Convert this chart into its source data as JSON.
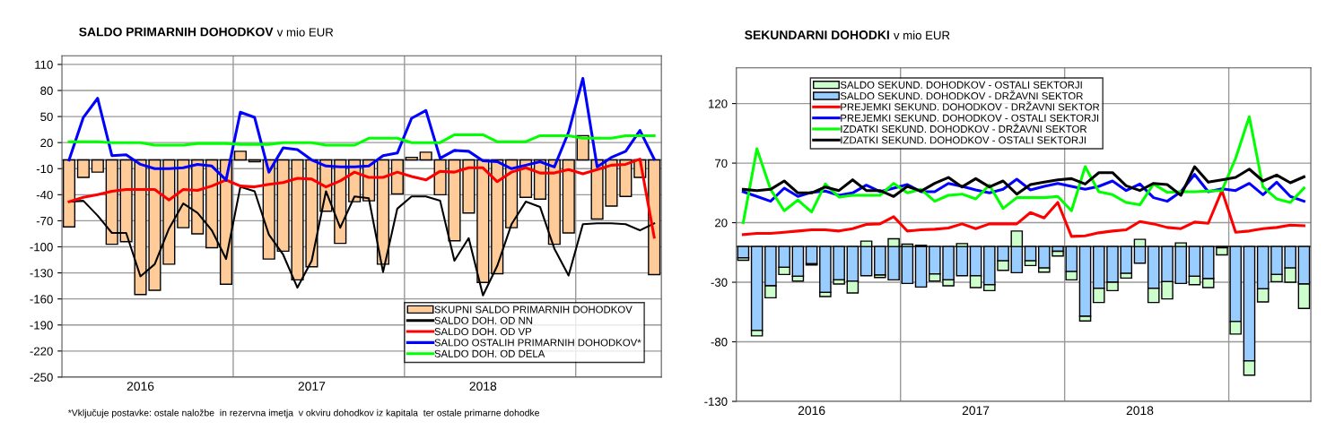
{
  "chart_data": [
    {
      "type": "bar",
      "title": "SALDO PRIMARNIH DOHODKOV",
      "subtitle": "v mio EUR",
      "categories": [
        null,
        null,
        null,
        null,
        null,
        "2016",
        null,
        null,
        null,
        null,
        null,
        null,
        null,
        null,
        null,
        null,
        null,
        "2017",
        null,
        null,
        null,
        null,
        null,
        null,
        null,
        null,
        null,
        null,
        null,
        "2018",
        null,
        null,
        null,
        null,
        null,
        null,
        null,
        null,
        null,
        null,
        null,
        null
      ],
      "series": [
        {
          "name": "SKUPNI SALDO PRIMARNIH DOHODKOV",
          "color": "#ffcc99",
          "values": [
            -77,
            -20,
            -14,
            -97,
            -94,
            -155,
            -150,
            -120,
            -78,
            -85,
            -101,
            -143,
            10,
            -2,
            -114,
            -105,
            -138,
            -123,
            -59,
            -96,
            -48,
            -47,
            -120,
            -39,
            3,
            9,
            -40,
            -93,
            -61,
            -141,
            -131,
            -78,
            -43,
            -45,
            -97,
            -84,
            28,
            -68,
            -53,
            -42,
            -20,
            -132
          ]
        },
        {
          "name": "SALDO DOH. OD NN",
          "type": "line",
          "color": "#000000",
          "values": [
            -48,
            -47,
            -64,
            -84,
            -84,
            -134,
            -120,
            -79,
            -50,
            -61,
            -81,
            -114,
            -31,
            -36,
            -86,
            -109,
            -147,
            -116,
            -36,
            -78,
            -42,
            -44,
            -129,
            -56,
            -42,
            -42,
            -47,
            -116,
            -90,
            -156,
            -122,
            -74,
            -48,
            -54,
            -102,
            -133,
            -74,
            -73,
            -73,
            -74,
            -81,
            -73
          ]
        },
        {
          "name": "SALDO DOH. OD VP",
          "type": "line",
          "color": "#ff0000",
          "values": [
            -48,
            -43,
            -40,
            -36,
            -34,
            -34,
            -34,
            -46,
            -34,
            -35,
            -30,
            -23,
            -30,
            -31,
            -28,
            -26,
            -21,
            -22,
            -31,
            -24,
            -14,
            -20,
            -20,
            -14,
            -19,
            -23,
            -13,
            -14,
            -9,
            -9,
            -25,
            -14,
            -9,
            -15,
            -15,
            -11,
            -16,
            -11,
            -6,
            -5,
            1,
            -89
          ]
        },
        {
          "name": "SALDO OSTALIH PRIMARNIH DOHODKOV*",
          "type": "line",
          "color": "#0000ff",
          "values": [
            0,
            49,
            71,
            5,
            6,
            -5,
            -10,
            -10,
            -9,
            -5,
            -7,
            -23,
            55,
            49,
            -14,
            14,
            12,
            0,
            -7,
            -8,
            -8,
            -7,
            5,
            8,
            48,
            57,
            2,
            11,
            10,
            -1,
            -2,
            -10,
            -6,
            -2,
            -8,
            32,
            94,
            -8,
            3,
            10,
            34,
            1
          ]
        },
        {
          "name": "SALDO DOH. OD DELA",
          "type": "line",
          "color": "#00ff00",
          "values": [
            21,
            21,
            21,
            20,
            20,
            20,
            17,
            17,
            17,
            19,
            19,
            19,
            18,
            18,
            18,
            20,
            20,
            20,
            17,
            17,
            17,
            25,
            25,
            25,
            20,
            20,
            20,
            29,
            29,
            29,
            21,
            21,
            21,
            28,
            28,
            28,
            25,
            25,
            25,
            28,
            28,
            28
          ]
        }
      ],
      "ylim": [
        -250,
        120
      ],
      "yticks": [
        110,
        80,
        50,
        20,
        -10,
        -40,
        -70,
        -100,
        -130,
        -160,
        -190,
        -220,
        -250
      ],
      "grid": true,
      "legend": "bottom right",
      "annotations": [
        "*Vključuje postavke: ostale naložbe  in rezervna imetja  v okviru dohodkov iz kapitala  ter ostale primarne dohodke"
      ]
    },
    {
      "type": "bar",
      "title": "SEKUNDARNI DOHODKI",
      "subtitle": "v mio EUR",
      "stacked": true,
      "categories": [
        null,
        null,
        null,
        null,
        null,
        "2016",
        null,
        null,
        null,
        null,
        null,
        null,
        null,
        null,
        null,
        null,
        null,
        "2017",
        null,
        null,
        null,
        null,
        null,
        null,
        null,
        null,
        null,
        null,
        null,
        "2018",
        null,
        null,
        null,
        null,
        null,
        null,
        null,
        null,
        null,
        null,
        null,
        null
      ],
      "series": [
        {
          "name": "SALDO SEKUND. DOHODKOV - DRŽAVNI SEKTOR",
          "color": "#99ccff",
          "values": [
            -9.5,
            -70.5,
            -33,
            -17.5,
            -25,
            -14.5,
            -38.5,
            -28,
            -29,
            -24.5,
            -24,
            -28,
            -31,
            -34,
            -23,
            -28,
            -24.5,
            -24.5,
            -32,
            -12,
            -22,
            -12,
            -18,
            -4,
            -21,
            -58.5,
            -35,
            -30,
            -22.5,
            -14,
            -35,
            -29.5,
            -31,
            -25,
            -27,
            -1,
            -63,
            -96,
            -35.5,
            -23.5,
            -18,
            -31.5
          ]
        },
        {
          "name": "SALDO SEKUND. DOHODKOV - OSTALI SEKTORJI",
          "color": "#ccffcc",
          "values": [
            -2,
            -4.5,
            -10,
            -6,
            -4,
            -1,
            -3.5,
            -3.5,
            -10,
            4.5,
            -2,
            6.5,
            2,
            1,
            -6,
            -5,
            2.5,
            -10,
            -5,
            -8,
            13,
            -4,
            -3.5,
            -4,
            -7,
            -4,
            -12,
            -7,
            -4,
            6,
            -12,
            -14.5,
            3,
            -7,
            -7.5,
            -6,
            -10.5,
            -12,
            -11,
            -6,
            -12,
            -20.5
          ]
        },
        {
          "name": "PREJEMKI SEKUND. DOHODKOV - DRŽAVNI SEKTOR",
          "type": "line",
          "color": "#ff0000",
          "values": [
            10,
            11,
            11,
            12,
            13,
            14,
            14,
            13,
            15,
            18.5,
            19,
            25,
            13,
            14,
            14.5,
            15.5,
            19,
            15,
            19,
            19,
            19,
            28.5,
            24,
            37,
            8.5,
            9,
            11.5,
            13,
            14,
            21,
            19,
            16,
            15,
            20.5,
            19.5,
            47,
            12,
            13,
            15,
            16,
            18,
            17.5
          ]
        },
        {
          "name": "PREJEMKI SEKUND. DOHODKOV - OSTALI SEKTORJI",
          "type": "line",
          "color": "#0000ff",
          "values": [
            46,
            42,
            38,
            49,
            42,
            45.5,
            46.5,
            43,
            45,
            51.5,
            46,
            49,
            52,
            46,
            46,
            53,
            50.5,
            47.5,
            45,
            48,
            56.5,
            47.5,
            50.5,
            53,
            50.5,
            48,
            50.5,
            55,
            47,
            52.5,
            41,
            38,
            46,
            60.5,
            46,
            48.5,
            47,
            53,
            43.5,
            54,
            42,
            38
          ]
        },
        {
          "name": "IZDATKI SEKUND. DOHODKOV - DRŽAVNI SEKTOR",
          "type": "line",
          "color": "#00ff00",
          "values": [
            20,
            82,
            48,
            30,
            39,
            29,
            52.5,
            41.5,
            43,
            43,
            43,
            53,
            45,
            48,
            38,
            43,
            44,
            40,
            51.5,
            32,
            41,
            41,
            41,
            42,
            30,
            67,
            46,
            43.5,
            37,
            35,
            52.5,
            45.5,
            46,
            46,
            46.5,
            47,
            74,
            109,
            50,
            40,
            37,
            49
          ]
        },
        {
          "name": "IZDATKI SEKUND. DOHODKOV - OSTALI SEKTORJI",
          "type": "line",
          "color": "#000000",
          "values": [
            48,
            47,
            48,
            55,
            45,
            45,
            50,
            47,
            56,
            47,
            47,
            42,
            50.5,
            46.5,
            53,
            58,
            50,
            57,
            50,
            55,
            44,
            52,
            54,
            56,
            57,
            52.5,
            62,
            62,
            51,
            47,
            53,
            52,
            43,
            67,
            54,
            56,
            58,
            65,
            55,
            60,
            53.5,
            58.5
          ]
        }
      ],
      "ylim": [
        -130,
        150
      ],
      "yticks": [
        -130,
        -80,
        -30,
        20,
        70,
        120
      ],
      "grid": true,
      "legend": "top left"
    }
  ]
}
